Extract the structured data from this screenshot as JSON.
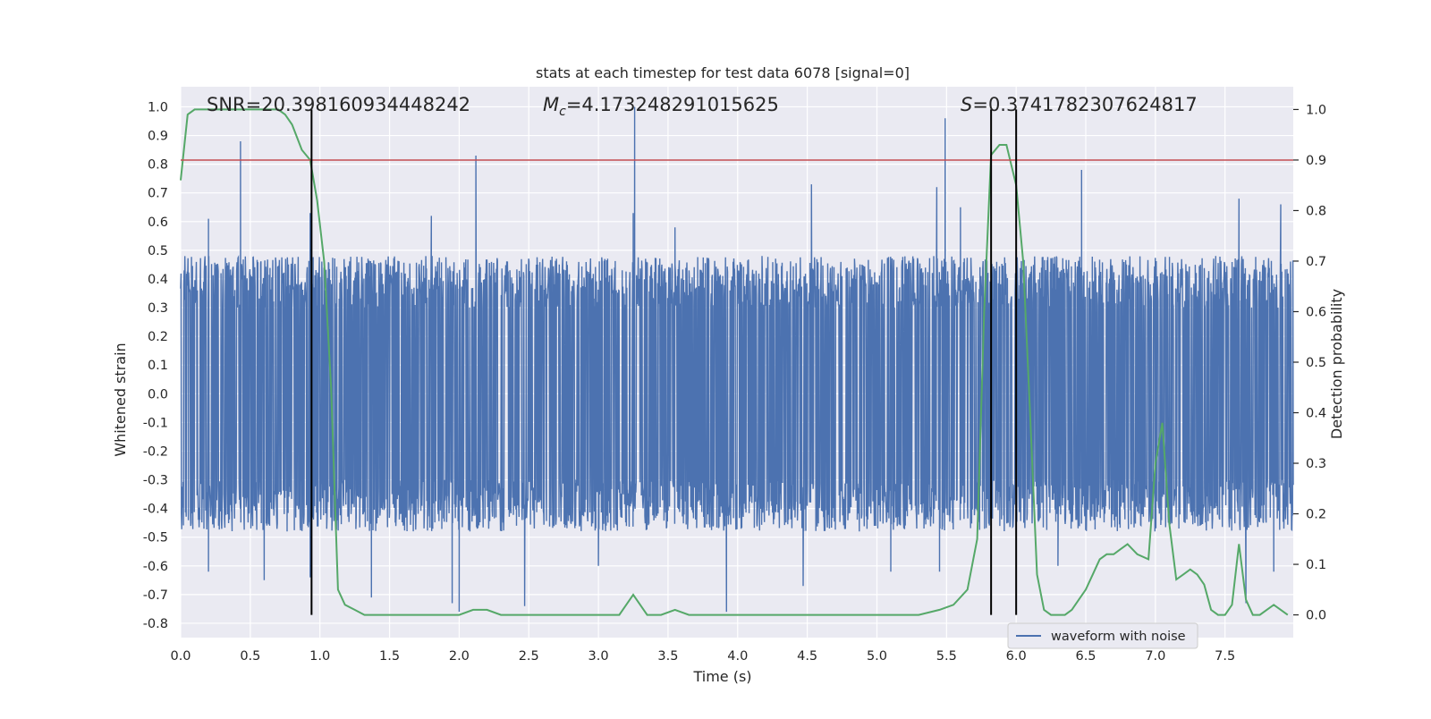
{
  "chart_data": {
    "type": "line",
    "title": "stats at each timestep for test data 6078 [signal=0]",
    "xlabel": "Time (s)",
    "ylabel_left": "Whitened strain",
    "ylabel_right": "Detection probability",
    "xlim": [
      0.0,
      7.99
    ],
    "ylim_left": [
      -0.85,
      1.07
    ],
    "ylim_right": [
      -0.045,
      1.045
    ],
    "x_ticks": [
      "0.0",
      "0.5",
      "1.0",
      "1.5",
      "2.0",
      "2.5",
      "3.0",
      "3.5",
      "4.0",
      "4.5",
      "5.0",
      "5.5",
      "6.0",
      "6.5",
      "7.0",
      "7.5"
    ],
    "x_tick_values": [
      0.0,
      0.5,
      1.0,
      1.5,
      2.0,
      2.5,
      3.0,
      3.5,
      4.0,
      4.5,
      5.0,
      5.5,
      6.0,
      6.5,
      7.0,
      7.5
    ],
    "y_left_ticks": [
      "1.0",
      "0.9",
      "0.8",
      "0.7",
      "0.6",
      "0.5",
      "0.4",
      "0.3",
      "0.2",
      "0.1",
      "0.0",
      "-0.1",
      "-0.2",
      "-0.3",
      "-0.4",
      "-0.5",
      "-0.6",
      "-0.7",
      "-0.8"
    ],
    "y_left_tick_values": [
      1.0,
      0.9,
      0.8,
      0.7,
      0.6,
      0.5,
      0.4,
      0.3,
      0.2,
      0.1,
      0.0,
      -0.1,
      -0.2,
      -0.3,
      -0.4,
      -0.5,
      -0.6,
      -0.7,
      -0.8
    ],
    "y_right_ticks": [
      "1.0",
      "0.9",
      "0.8",
      "0.7",
      "0.6",
      "0.5",
      "0.4",
      "0.3",
      "0.2",
      "0.1",
      "0.0"
    ],
    "y_right_tick_values": [
      1.0,
      0.9,
      0.8,
      0.7,
      0.6,
      0.5,
      0.4,
      0.3,
      0.2,
      0.1,
      0.0
    ],
    "grid": true,
    "annotations": {
      "snr": "SNR=20.398160934448242",
      "mc_symbol": "M",
      "mc_sub": "c",
      "mc_value": "=4.173248291015625",
      "s_symbol": "S",
      "s_value": "=0.3741782307624817"
    },
    "legend": {
      "position": "bottom-right",
      "entries": [
        "waveform with noise"
      ]
    },
    "waveform": {
      "name": "waveform with noise",
      "color": "#4c72b0",
      "envelope_pos": 0.4,
      "envelope_neg": -0.4,
      "peaks": [
        {
          "x": 0.43,
          "y": 0.88
        },
        {
          "x": 0.93,
          "y": 0.63
        },
        {
          "x": 2.12,
          "y": 0.83
        },
        {
          "x": 3.26,
          "y": 1.0
        },
        {
          "x": 3.25,
          "y": 0.63
        },
        {
          "x": 4.53,
          "y": 0.73
        },
        {
          "x": 5.49,
          "y": 0.96
        },
        {
          "x": 5.43,
          "y": 0.72
        },
        {
          "x": 6.47,
          "y": 0.78
        },
        {
          "x": 7.6,
          "y": 0.68
        },
        {
          "x": 7.9,
          "y": 0.66
        },
        {
          "x": 0.2,
          "y": 0.61
        },
        {
          "x": 1.8,
          "y": 0.62
        },
        {
          "x": 3.55,
          "y": 0.58
        },
        {
          "x": 5.6,
          "y": 0.65
        }
      ],
      "troughs": [
        {
          "x": 0.2,
          "y": -0.62
        },
        {
          "x": 0.6,
          "y": -0.65
        },
        {
          "x": 0.93,
          "y": -0.64
        },
        {
          "x": 1.37,
          "y": -0.71
        },
        {
          "x": 1.95,
          "y": -0.73
        },
        {
          "x": 2.0,
          "y": -0.76
        },
        {
          "x": 2.47,
          "y": -0.74
        },
        {
          "x": 3.92,
          "y": -0.76
        },
        {
          "x": 4.47,
          "y": -0.67
        },
        {
          "x": 5.45,
          "y": -0.62
        },
        {
          "x": 5.1,
          "y": -0.62
        },
        {
          "x": 6.3,
          "y": -0.6
        },
        {
          "x": 7.65,
          "y": -0.73
        },
        {
          "x": 7.85,
          "y": -0.62
        },
        {
          "x": 3.0,
          "y": -0.6
        }
      ]
    },
    "probability": {
      "color": "#55a868",
      "x": [
        0.0,
        0.05,
        0.1,
        0.2,
        0.3,
        0.4,
        0.5,
        0.6,
        0.7,
        0.75,
        0.8,
        0.87,
        0.93,
        0.98,
        1.03,
        1.08,
        1.13,
        1.18,
        1.25,
        1.32,
        1.4,
        1.5,
        1.6,
        1.7,
        1.8,
        1.9,
        2.0,
        2.1,
        2.2,
        2.3,
        2.4,
        2.5,
        2.6,
        2.7,
        2.8,
        2.9,
        3.0,
        3.1,
        3.15,
        3.2,
        3.25,
        3.3,
        3.35,
        3.45,
        3.55,
        3.65,
        3.75,
        3.85,
        3.95,
        4.05,
        4.15,
        4.25,
        4.35,
        4.5,
        4.7,
        4.9,
        5.1,
        5.3,
        5.45,
        5.55,
        5.65,
        5.72,
        5.77,
        5.82,
        5.88,
        5.93,
        6.0,
        6.05,
        6.1,
        6.15,
        6.2,
        6.25,
        6.3,
        6.35,
        6.4,
        6.45,
        6.5,
        6.55,
        6.6,
        6.65,
        6.7,
        6.75,
        6.8,
        6.87,
        6.95,
        7.0,
        7.05,
        7.1,
        7.15,
        7.2,
        7.25,
        7.3,
        7.35,
        7.4,
        7.45,
        7.5,
        7.55,
        7.6,
        7.65,
        7.7,
        7.75,
        7.8,
        7.85,
        7.9,
        7.95
      ],
      "y": [
        0.86,
        0.99,
        1.0,
        1.0,
        1.0,
        1.0,
        1.0,
        1.0,
        1.0,
        0.99,
        0.97,
        0.92,
        0.9,
        0.82,
        0.7,
        0.45,
        0.05,
        0.02,
        0.01,
        0.0,
        0.0,
        0.0,
        0.0,
        0.0,
        0.0,
        0.0,
        0.0,
        0.01,
        0.01,
        0.0,
        0.0,
        0.0,
        0.0,
        0.0,
        0.0,
        0.0,
        0.0,
        0.0,
        0.0,
        0.02,
        0.04,
        0.02,
        0.0,
        0.0,
        0.01,
        0.0,
        0.0,
        0.0,
        0.0,
        0.0,
        0.0,
        0.0,
        0.0,
        0.0,
        0.0,
        0.0,
        0.0,
        0.0,
        0.01,
        0.02,
        0.05,
        0.15,
        0.6,
        0.91,
        0.93,
        0.93,
        0.85,
        0.7,
        0.4,
        0.08,
        0.01,
        0.0,
        0.0,
        0.0,
        0.01,
        0.03,
        0.05,
        0.08,
        0.11,
        0.12,
        0.12,
        0.13,
        0.14,
        0.12,
        0.11,
        0.3,
        0.38,
        0.18,
        0.07,
        0.08,
        0.09,
        0.08,
        0.06,
        0.01,
        0.0,
        0.0,
        0.02,
        0.14,
        0.03,
        0.0,
        0.0,
        0.01,
        0.02,
        0.01,
        0.0
      ]
    },
    "threshold": {
      "value": 0.9,
      "axis": "right",
      "color": "#c44e52"
    },
    "vlines": [
      {
        "x": 0.94,
        "ymin": 0.0,
        "ymax": 1.0
      },
      {
        "x": 5.82,
        "ymin": 0.0,
        "ymax": 1.0
      },
      {
        "x": 6.0,
        "ymin": 0.0,
        "ymax": 1.0
      }
    ]
  }
}
